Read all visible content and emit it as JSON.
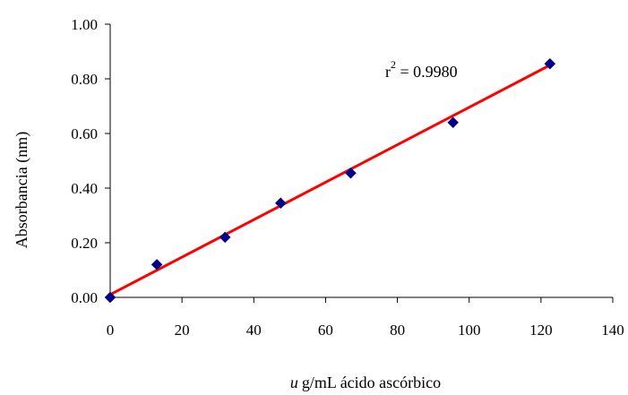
{
  "chart_data": {
    "type": "scatter",
    "title": "",
    "xlabel_prefix": "u",
    "xlabel_rest": "g/mL ácido ascórbico",
    "ylabel": "Absorbancia (nm)",
    "xlim": [
      0,
      140
    ],
    "ylim": [
      0,
      1.0
    ],
    "x_ticks": [
      "0",
      "20",
      "40",
      "60",
      "80",
      "100",
      "120",
      "140"
    ],
    "y_ticks": [
      "0.00",
      "0.20",
      "0.40",
      "0.60",
      "0.80",
      "1.00"
    ],
    "grid": false,
    "legend": "none",
    "series": [
      {
        "marker": "diamond",
        "color": "#00008B",
        "x": [
          0,
          13,
          32,
          47.5,
          67,
          95.5,
          122.5
        ],
        "y": [
          0.0,
          0.12,
          0.22,
          0.345,
          0.455,
          0.64,
          0.855
        ]
      }
    ],
    "trendline": {
      "color": "#FF0000",
      "x": [
        0,
        122.5
      ],
      "y": [
        0.01,
        0.85
      ]
    },
    "annotation": {
      "prefix": "r",
      "superscript": "2",
      "suffix": " = 0.9980"
    }
  }
}
